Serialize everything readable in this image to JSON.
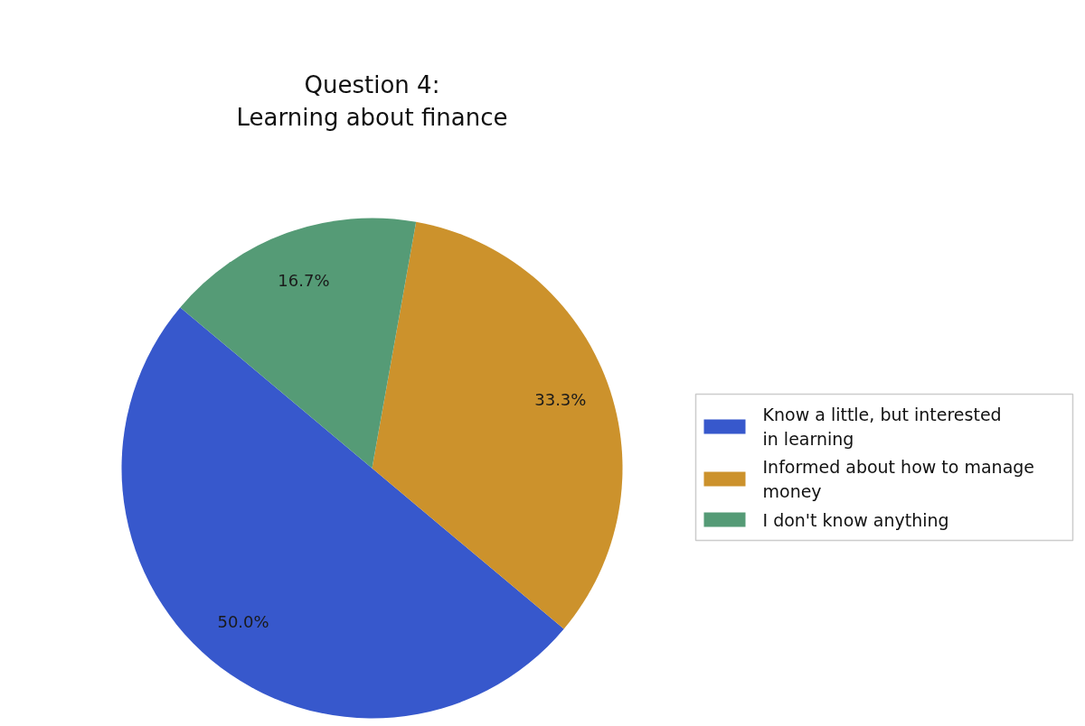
{
  "chart_data": {
    "type": "pie",
    "title": "Question 4:\nLearning about finance",
    "categories": [
      "Know a little, but interested in learning",
      "Informed about how to manage money",
      "I don't know anything"
    ],
    "values": [
      50.0,
      33.3,
      16.7
    ],
    "colors": [
      "#3758cc",
      "#cc922c",
      "#559b76"
    ],
    "value_labels": [
      "50.0%",
      "33.3%",
      "16.7%"
    ],
    "legend": "right"
  }
}
